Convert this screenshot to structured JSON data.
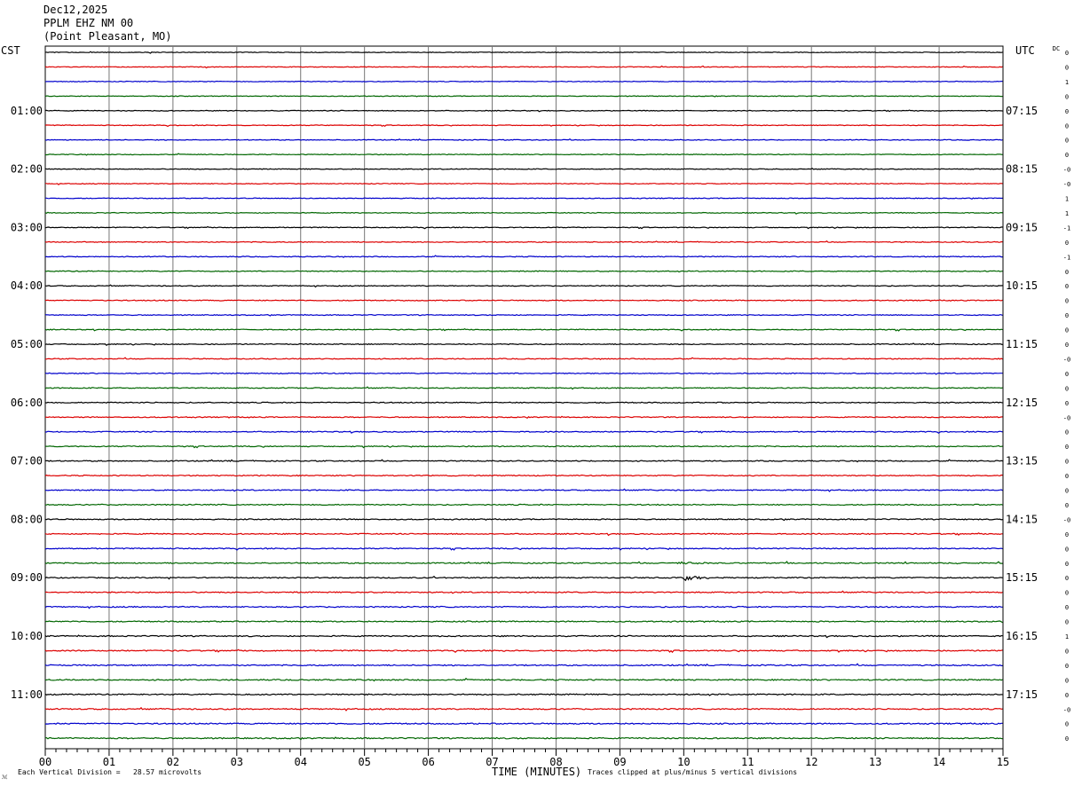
{
  "header": {
    "date": "Dec12,2025",
    "station": "PPLM EHZ NM 00",
    "location": "(Point Pleasant, MO)"
  },
  "left_tz": "CST",
  "right_tz": "UTC",
  "dc_label": "DC",
  "footer": {
    "left": "Each Vertical Division =   28.57 microvolts",
    "center": "TIME (MINUTES)",
    "right": "Traces clipped at plus/minus 5 vertical divisions"
  },
  "colors": {
    "trace_cycle": [
      "#000000",
      "#dd0000",
      "#0000cc",
      "#006600"
    ],
    "grid": "#777777"
  },
  "chart_data": {
    "type": "line",
    "title": "PPLM EHZ NM 00",
    "xlabel": "TIME (MINUTES)",
    "xlim": [
      0,
      15
    ],
    "x_ticks": [
      "00",
      "01",
      "02",
      "03",
      "04",
      "05",
      "06",
      "07",
      "08",
      "09",
      "10",
      "11",
      "12",
      "13",
      "14",
      "15"
    ],
    "minutes_per_trace": 15,
    "trace_count": 48,
    "left_hour_labels": [
      "01:00",
      "02:00",
      "03:00",
      "04:00",
      "05:00",
      "06:00",
      "07:00",
      "08:00",
      "09:00",
      "10:00",
      "11:00"
    ],
    "right_hour_labels": [
      "07:15",
      "08:15",
      "09:15",
      "10:15",
      "11:15",
      "12:15",
      "13:15",
      "14:15",
      "15:15",
      "16:15",
      "17:15"
    ],
    "dc_offsets": [
      "0",
      "0",
      "1",
      "0",
      "0",
      "0",
      "0",
      "0",
      "-0",
      "-0",
      "1",
      "1",
      "-1",
      "0",
      "-1",
      "0",
      "0",
      "0",
      "0",
      "0",
      "0",
      "-0",
      "0",
      "0",
      "0",
      "-0",
      "0",
      "0",
      "0",
      "0",
      "0",
      "0",
      "-0",
      "0",
      "0",
      "0",
      "0",
      "0",
      "0",
      "0",
      "1",
      "0",
      "0",
      "0",
      "0",
      "-0",
      "0",
      "0"
    ],
    "events": [
      {
        "trace": 35,
        "minute": 10.0,
        "amplitude": 2.0
      },
      {
        "trace": 36,
        "minute": 10.1,
        "amplitude": 3.5
      }
    ]
  }
}
